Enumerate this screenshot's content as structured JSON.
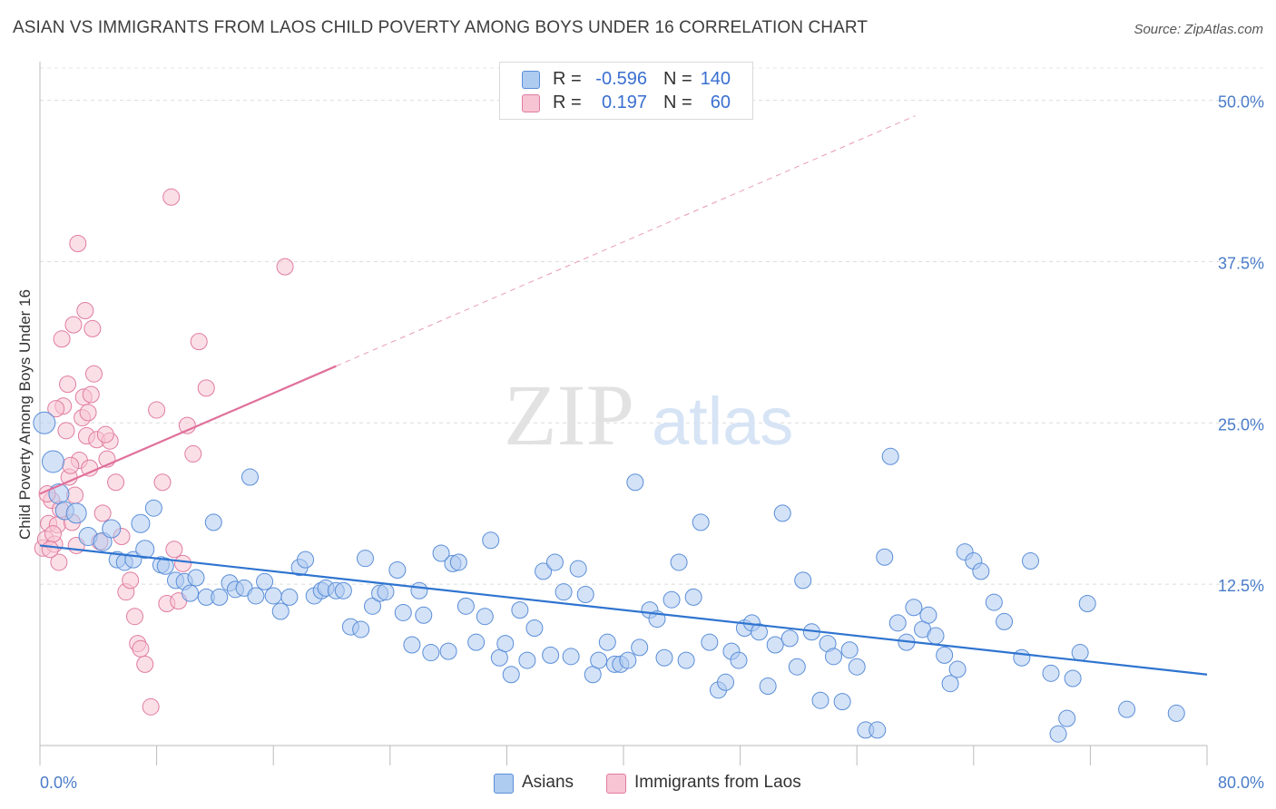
{
  "title": "ASIAN VS IMMIGRANTS FROM LAOS CHILD POVERTY AMONG BOYS UNDER 16 CORRELATION CHART",
  "source": "Source: ZipAtlas.com",
  "watermark": {
    "zip": "ZIP",
    "atlas": "atlas"
  },
  "legend": {
    "rows": [
      {
        "series": "Asians",
        "r_label": "R =",
        "r_value": "-0.596",
        "n_label": "N =",
        "n_value": "140",
        "color": "#aecbf0",
        "stroke": "#5b8ed8"
      },
      {
        "series": "Immigrants from Laos",
        "r_label": "R =",
        "r_value": "0.197",
        "n_label": "N =",
        "n_value": "60",
        "color": "#f7c4d4",
        "stroke": "#e07ca0"
      }
    ]
  },
  "bottom_legend": {
    "asians": "Asians",
    "laos": "Immigrants from Laos"
  },
  "chart_data": {
    "type": "scatter",
    "title": "ASIAN VS IMMIGRANTS FROM LAOS CHILD POVERTY AMONG BOYS UNDER 16 CORRELATION CHART",
    "ylabel": "Child Poverty Among Boys Under 16",
    "xlabel": "",
    "xlim": [
      0,
      80
    ],
    "ylim": [
      0,
      52.5
    ],
    "x_tick_labels": [
      "0.0%",
      "80.0%"
    ],
    "y_ticks": [
      12.5,
      25.0,
      37.5,
      50.0
    ],
    "y_tick_labels": [
      "12.5%",
      "25.0%",
      "37.5%",
      "50.0%"
    ],
    "grid": true,
    "legend_position": "top-center",
    "series": [
      {
        "name": "Asians",
        "color": "#aecbf0",
        "stroke": "#5b8ed8",
        "trend": {
          "x": [
            0,
            80
          ],
          "y": [
            15.5,
            5.5
          ],
          "color": "#2f74d0"
        },
        "points": [
          [
            0.3,
            25.0,
            12
          ],
          [
            0.9,
            22.0,
            12
          ],
          [
            1.3,
            19.5,
            11
          ],
          [
            1.7,
            18.2,
            10
          ],
          [
            2.5,
            18.0,
            11
          ],
          [
            3.3,
            16.2,
            10
          ],
          [
            4.3,
            15.8,
            10
          ],
          [
            4.9,
            16.8,
            10
          ],
          [
            5.3,
            14.4,
            9
          ],
          [
            5.8,
            14.2,
            9
          ],
          [
            6.4,
            14.4,
            9
          ],
          [
            6.9,
            17.2,
            10
          ],
          [
            7.2,
            15.2,
            10
          ],
          [
            7.8,
            18.4,
            9
          ],
          [
            8.3,
            14.0,
            9
          ],
          [
            8.6,
            13.9,
            9
          ],
          [
            9.3,
            12.8,
            9
          ],
          [
            9.9,
            12.7,
            9
          ],
          [
            10.3,
            11.8,
            9
          ],
          [
            10.7,
            13.0,
            9
          ],
          [
            11.4,
            11.5,
            9
          ],
          [
            11.9,
            17.3,
            9
          ],
          [
            12.3,
            11.5,
            9
          ],
          [
            13.0,
            12.6,
            9
          ],
          [
            13.4,
            12.1,
            9
          ],
          [
            14.0,
            12.2,
            9
          ],
          [
            14.4,
            20.8,
            9
          ],
          [
            14.8,
            11.6,
            9
          ],
          [
            15.4,
            12.7,
            9
          ],
          [
            16.0,
            11.6,
            9
          ],
          [
            16.5,
            10.4,
            9
          ],
          [
            17.1,
            11.5,
            9
          ],
          [
            17.8,
            13.8,
            9
          ],
          [
            18.2,
            14.4,
            9
          ],
          [
            18.8,
            11.6,
            9
          ],
          [
            19.3,
            12.0,
            9
          ],
          [
            19.6,
            12.2,
            9
          ],
          [
            20.3,
            12.0,
            9
          ],
          [
            20.8,
            12.0,
            9
          ],
          [
            21.3,
            9.2,
            9
          ],
          [
            22.0,
            9.0,
            9
          ],
          [
            22.3,
            14.5,
            9
          ],
          [
            22.8,
            10.8,
            9
          ],
          [
            23.3,
            11.8,
            9
          ],
          [
            23.7,
            11.9,
            9
          ],
          [
            24.5,
            13.6,
            9
          ],
          [
            24.9,
            10.3,
            9
          ],
          [
            25.5,
            7.8,
            9
          ],
          [
            26.0,
            12.0,
            9
          ],
          [
            26.3,
            10.1,
            9
          ],
          [
            26.8,
            7.2,
            9
          ],
          [
            27.5,
            14.9,
            9
          ],
          [
            28.0,
            7.3,
            9
          ],
          [
            28.3,
            14.1,
            9
          ],
          [
            28.7,
            14.2,
            9
          ],
          [
            29.2,
            10.8,
            9
          ],
          [
            29.9,
            8.0,
            9
          ],
          [
            30.5,
            10.0,
            9
          ],
          [
            30.9,
            15.9,
            9
          ],
          [
            31.5,
            6.8,
            9
          ],
          [
            31.9,
            7.9,
            9
          ],
          [
            32.3,
            5.5,
            9
          ],
          [
            32.9,
            10.5,
            9
          ],
          [
            33.4,
            6.6,
            9
          ],
          [
            33.9,
            9.1,
            9
          ],
          [
            34.5,
            13.5,
            9
          ],
          [
            35.0,
            7.0,
            9
          ],
          [
            35.3,
            14.2,
            9
          ],
          [
            35.9,
            11.9,
            9
          ],
          [
            36.4,
            6.9,
            9
          ],
          [
            36.9,
            13.7,
            9
          ],
          [
            37.4,
            11.7,
            9
          ],
          [
            37.9,
            5.5,
            9
          ],
          [
            38.3,
            6.6,
            9
          ],
          [
            38.9,
            8.0,
            9
          ],
          [
            39.4,
            6.3,
            9
          ],
          [
            39.8,
            6.3,
            9
          ],
          [
            40.3,
            6.6,
            9
          ],
          [
            40.8,
            20.4,
            9
          ],
          [
            41.1,
            7.6,
            9
          ],
          [
            41.8,
            10.5,
            9
          ],
          [
            42.3,
            9.8,
            9
          ],
          [
            42.8,
            6.8,
            9
          ],
          [
            43.3,
            11.3,
            9
          ],
          [
            43.8,
            14.2,
            9
          ],
          [
            44.3,
            6.6,
            9
          ],
          [
            44.8,
            11.5,
            9
          ],
          [
            45.3,
            17.3,
            9
          ],
          [
            45.9,
            8.0,
            9
          ],
          [
            46.5,
            4.3,
            9
          ],
          [
            47.0,
            4.9,
            9
          ],
          [
            47.4,
            7.3,
            9
          ],
          [
            47.9,
            6.6,
            9
          ],
          [
            48.3,
            9.1,
            9
          ],
          [
            48.8,
            9.5,
            9
          ],
          [
            49.3,
            8.8,
            9
          ],
          [
            49.9,
            4.6,
            9
          ],
          [
            50.4,
            7.8,
            9
          ],
          [
            50.9,
            18.0,
            9
          ],
          [
            51.4,
            8.3,
            9
          ],
          [
            51.9,
            6.1,
            9
          ],
          [
            52.3,
            12.8,
            9
          ],
          [
            52.9,
            8.8,
            9
          ],
          [
            53.5,
            3.5,
            9
          ],
          [
            54.0,
            7.9,
            9
          ],
          [
            54.4,
            6.9,
            9
          ],
          [
            55.0,
            3.4,
            9
          ],
          [
            55.5,
            7.4,
            9
          ],
          [
            56.0,
            6.1,
            9
          ],
          [
            56.6,
            1.2,
            9
          ],
          [
            57.4,
            1.2,
            9
          ],
          [
            57.9,
            14.6,
            9
          ],
          [
            58.3,
            22.4,
            9
          ],
          [
            58.8,
            9.5,
            9
          ],
          [
            59.4,
            8.0,
            9
          ],
          [
            59.9,
            10.7,
            9
          ],
          [
            60.5,
            9.0,
            9
          ],
          [
            60.9,
            10.1,
            9
          ],
          [
            61.4,
            8.5,
            9
          ],
          [
            62.0,
            7.0,
            9
          ],
          [
            62.4,
            4.8,
            9
          ],
          [
            62.9,
            5.9,
            9
          ],
          [
            63.4,
            15.0,
            9
          ],
          [
            64.0,
            14.3,
            9
          ],
          [
            64.5,
            13.5,
            9
          ],
          [
            65.4,
            11.1,
            9
          ],
          [
            66.1,
            9.6,
            9
          ],
          [
            67.3,
            6.8,
            9
          ],
          [
            67.9,
            14.3,
            9
          ],
          [
            69.3,
            5.6,
            9
          ],
          [
            69.8,
            0.9,
            9
          ],
          [
            70.4,
            2.1,
            9
          ],
          [
            70.8,
            5.2,
            9
          ],
          [
            71.3,
            7.2,
            9
          ],
          [
            71.8,
            11.0,
            9
          ],
          [
            74.5,
            2.8,
            9
          ],
          [
            77.9,
            2.5,
            9
          ]
        ]
      },
      {
        "name": "Immigrants from Laos",
        "color": "#f7c4d4",
        "stroke": "#e07ca0",
        "trend": {
          "x": [
            0,
            20.3
          ],
          "y": [
            19.5,
            29.4
          ],
          "color": "#e0709a",
          "extrapolated_to": [
            60.0,
            48.8
          ]
        },
        "points": [
          [
            0.2,
            15.3,
            9
          ],
          [
            0.4,
            16.0,
            9
          ],
          [
            0.6,
            17.2,
            9
          ],
          [
            0.8,
            19.0,
            9
          ],
          [
            1.0,
            15.6,
            9
          ],
          [
            1.2,
            17.1,
            9
          ],
          [
            1.4,
            18.3,
            9
          ],
          [
            1.6,
            26.3,
            9
          ],
          [
            1.8,
            24.4,
            9
          ],
          [
            2.0,
            20.8,
            9
          ],
          [
            2.2,
            17.3,
            9
          ],
          [
            2.4,
            19.4,
            9
          ],
          [
            2.5,
            15.5,
            9
          ],
          [
            2.7,
            22.1,
            9
          ],
          [
            2.9,
            25.4,
            9
          ],
          [
            3.0,
            27.0,
            9
          ],
          [
            3.2,
            24.0,
            9
          ],
          [
            3.4,
            21.5,
            9
          ],
          [
            3.5,
            27.2,
            9
          ],
          [
            3.7,
            28.8,
            9
          ],
          [
            3.9,
            23.7,
            9
          ],
          [
            4.1,
            15.8,
            9
          ],
          [
            4.3,
            18.0,
            9
          ],
          [
            4.6,
            22.2,
            9
          ],
          [
            4.8,
            23.6,
            9
          ],
          [
            5.2,
            20.4,
            9
          ],
          [
            5.6,
            16.2,
            9
          ],
          [
            5.9,
            11.9,
            9
          ],
          [
            6.2,
            12.8,
            9
          ],
          [
            6.5,
            10.0,
            9
          ],
          [
            6.7,
            7.9,
            9
          ],
          [
            6.9,
            7.5,
            9
          ],
          [
            7.2,
            6.3,
            9
          ],
          [
            7.6,
            3.0,
            9
          ],
          [
            8.0,
            26.0,
            9
          ],
          [
            8.4,
            20.4,
            9
          ],
          [
            8.7,
            11.0,
            9
          ],
          [
            9.0,
            42.5,
            9
          ],
          [
            9.2,
            15.2,
            9
          ],
          [
            9.5,
            11.2,
            9
          ],
          [
            9.8,
            14.1,
            9
          ],
          [
            10.1,
            24.8,
            9
          ],
          [
            10.5,
            22.6,
            9
          ],
          [
            10.9,
            31.3,
            9
          ],
          [
            11.4,
            27.7,
            9
          ],
          [
            2.6,
            38.9,
            9
          ],
          [
            3.1,
            33.7,
            9
          ],
          [
            3.6,
            32.3,
            9
          ],
          [
            1.5,
            31.5,
            9
          ],
          [
            2.3,
            32.6,
            9
          ],
          [
            16.8,
            37.1,
            9
          ],
          [
            1.1,
            26.1,
            9
          ],
          [
            1.9,
            28.0,
            9
          ],
          [
            0.5,
            19.5,
            9
          ],
          [
            0.9,
            16.4,
            9
          ],
          [
            1.3,
            14.2,
            9
          ],
          [
            3.3,
            25.8,
            9
          ],
          [
            4.5,
            24.1,
            9
          ],
          [
            2.1,
            21.7,
            9
          ],
          [
            0.7,
            15.2,
            9
          ]
        ]
      }
    ]
  }
}
